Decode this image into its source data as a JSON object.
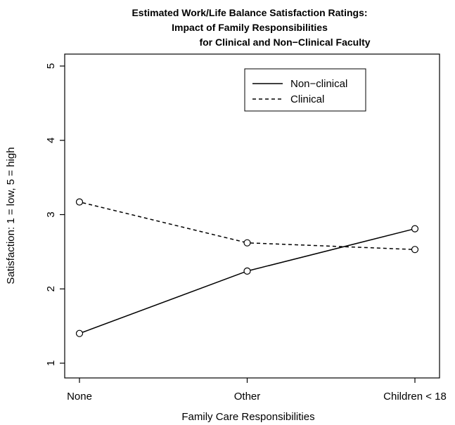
{
  "chart_data": {
    "type": "line",
    "title_lines": [
      "Estimated Work/Life Balance Satisfaction Ratings:",
      "Impact of Family Responsibilities",
      "for Clinical and Non−Clinical Faculty"
    ],
    "xlabel": "Family Care Responsibilities",
    "ylabel": "Satisfaction: 1 = low, 5 = high",
    "categories": [
      "None",
      "Other",
      "Children < 18"
    ],
    "yticks": [
      "1",
      "2",
      "3",
      "4",
      "5"
    ],
    "ylim": [
      1,
      5
    ],
    "grid": false,
    "legend_position": "top-right",
    "series": [
      {
        "name": "Non−clinical",
        "style": "solid",
        "values": [
          1.4,
          2.24,
          2.81
        ]
      },
      {
        "name": "Clinical",
        "style": "dashed",
        "values": [
          3.17,
          2.62,
          2.53
        ]
      }
    ],
    "colors": {
      "line": "#000000",
      "background": "#ffffff"
    }
  }
}
